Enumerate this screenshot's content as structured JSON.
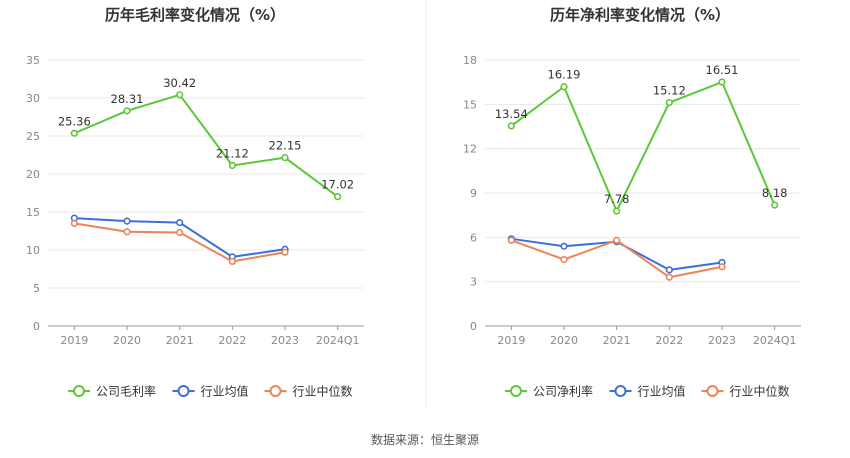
{
  "colors": {
    "company": "#5ac837",
    "avg": "#3d6fdc",
    "median": "#ee8358",
    "grid": "#e8e8e8",
    "axis": "#999999"
  },
  "chart_data": [
    {
      "type": "line",
      "title": "历年毛利率变化情况（%）",
      "categories": [
        "2019",
        "2020",
        "2021",
        "2022",
        "2023",
        "2024Q1"
      ],
      "ylim": [
        0,
        35
      ],
      "yticks": [
        0,
        5,
        10,
        15,
        20,
        25,
        30,
        35
      ],
      "grid": true,
      "legend_position": "bottom",
      "series": [
        {
          "name": "公司毛利率",
          "values": [
            25.36,
            28.31,
            30.42,
            21.12,
            22.15,
            17.02
          ],
          "labels": [
            "25.36",
            "28.31",
            "30.42",
            "21.12",
            "22.15",
            "17.02"
          ]
        },
        {
          "name": "行业均值",
          "values": [
            14.2,
            13.8,
            13.6,
            9.1,
            10.1,
            null
          ]
        },
        {
          "name": "行业中位数",
          "values": [
            13.5,
            12.4,
            12.3,
            8.5,
            9.7,
            null
          ]
        }
      ]
    },
    {
      "type": "line",
      "title": "历年净利率变化情况（%）",
      "categories": [
        "2019",
        "2020",
        "2021",
        "2022",
        "2023",
        "2024Q1"
      ],
      "ylim": [
        0,
        18
      ],
      "yticks": [
        0,
        3,
        6,
        9,
        12,
        15,
        18
      ],
      "grid": true,
      "legend_position": "bottom",
      "series": [
        {
          "name": "公司净利率",
          "values": [
            13.54,
            16.19,
            7.78,
            15.12,
            16.51,
            8.18
          ],
          "labels": [
            "13.54",
            "16.19",
            "7.78",
            "15.12",
            "16.51",
            "8.18"
          ]
        },
        {
          "name": "行业均值",
          "values": [
            5.9,
            5.4,
            5.7,
            3.8,
            4.3,
            null
          ]
        },
        {
          "name": "行业中位数",
          "values": [
            5.8,
            4.5,
            5.8,
            3.3,
            4.0,
            null
          ]
        }
      ]
    }
  ],
  "source": "数据来源：恒生聚源"
}
